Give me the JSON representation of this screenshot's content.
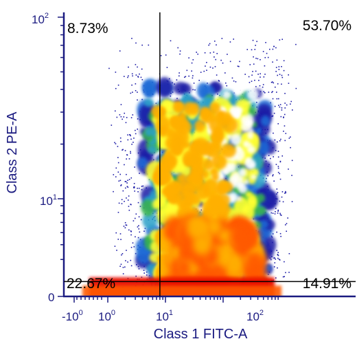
{
  "chart_data": {
    "type": "scatter",
    "xlabel": "Class 1 FITC-A",
    "ylabel": "Class 2 PE-A",
    "x_scale": "biexponential (log with linear region near zero)",
    "y_scale": "biexponential (log with linear region near zero)",
    "x_range": [
      -2,
      1000
    ],
    "y_range": [
      0,
      100
    ],
    "x_ticks": [
      {
        "value": -1,
        "base": "-10",
        "exp": "0"
      },
      {
        "value": 1,
        "base": "10",
        "exp": "0"
      },
      {
        "value": 10,
        "base": "10",
        "exp": "1"
      },
      {
        "value": 100,
        "base": "10",
        "exp": "2"
      }
    ],
    "y_ticks": [
      {
        "value": 0,
        "label": "0"
      },
      {
        "value": 10,
        "base": "10",
        "exp": "1"
      },
      {
        "value": 100,
        "base": "10",
        "exp": "2"
      }
    ],
    "gate_x": 8,
    "gate_y": 2.5,
    "quadrants": [
      {
        "position": "top-left",
        "label": "8.73%"
      },
      {
        "position": "top-right",
        "label": "53.70%"
      },
      {
        "position": "bottom-left",
        "label": "22.67%"
      },
      {
        "position": "bottom-right",
        "label": "14.91%"
      }
    ],
    "density_colors": [
      "#1a1aa6",
      "#1e6bd6",
      "#2aa0c8",
      "#39b54a",
      "#ffff33",
      "#ffb000",
      "#ff5a00",
      "#e81000"
    ],
    "grid": false
  }
}
